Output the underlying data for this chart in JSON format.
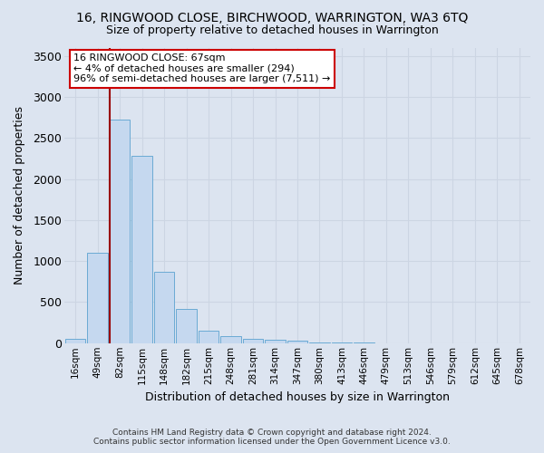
{
  "title": "16, RINGWOOD CLOSE, BIRCHWOOD, WARRINGTON, WA3 6TQ",
  "subtitle": "Size of property relative to detached houses in Warrington",
  "xlabel": "Distribution of detached houses by size in Warrington",
  "ylabel": "Number of detached properties",
  "bin_labels": [
    "16sqm",
    "49sqm",
    "82sqm",
    "115sqm",
    "148sqm",
    "182sqm",
    "215sqm",
    "248sqm",
    "281sqm",
    "314sqm",
    "347sqm",
    "380sqm",
    "413sqm",
    "446sqm",
    "479sqm",
    "513sqm",
    "546sqm",
    "579sqm",
    "612sqm",
    "645sqm",
    "678sqm"
  ],
  "bar_heights": [
    55,
    1100,
    2720,
    2280,
    870,
    420,
    150,
    90,
    50,
    38,
    25,
    10,
    8,
    4,
    2,
    1,
    0,
    0,
    0,
    0,
    0
  ],
  "bar_color": "#c5d8ef",
  "bar_edge_color": "#6aaad4",
  "vline_x": 1.3,
  "vline_color": "#990000",
  "annotation_text": "16 RINGWOOD CLOSE: 67sqm\n← 4% of detached houses are smaller (294)\n96% of semi-detached houses are larger (7,511) →",
  "annotation_box_facecolor": "#ffffff",
  "annotation_box_edgecolor": "#cc0000",
  "ylim": [
    0,
    3600
  ],
  "yticks": [
    0,
    500,
    1000,
    1500,
    2000,
    2500,
    3000,
    3500
  ],
  "grid_color": "#ccd5e3",
  "background_color": "#dce4f0",
  "title_fontsize": 10,
  "subtitle_fontsize": 9,
  "footer_line1": "Contains HM Land Registry data © Crown copyright and database right 2024.",
  "footer_line2": "Contains public sector information licensed under the Open Government Licence v3.0."
}
